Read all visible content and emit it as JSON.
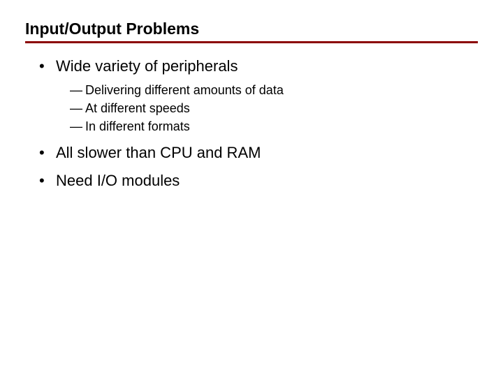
{
  "colors": {
    "rule": "#8b0000",
    "text": "#000000",
    "background": "#ffffff"
  },
  "typography": {
    "title_fontsize": 23,
    "title_weight": "bold",
    "bullet_fontsize": 22,
    "sub_fontsize": 18,
    "family": "Verdana"
  },
  "slide": {
    "title": "Input/Output Problems",
    "bullets": [
      {
        "text": "Wide variety of peripherals",
        "sub": [
          "Delivering different amounts of data",
          "At different speeds",
          "In different formats"
        ]
      },
      {
        "text": "All slower than CPU and RAM",
        "sub": []
      },
      {
        "text": "Need I/O modules",
        "sub": []
      }
    ]
  }
}
